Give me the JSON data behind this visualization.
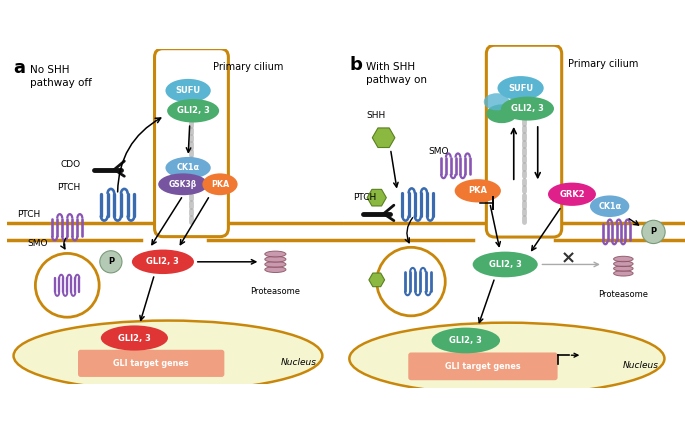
{
  "colors": {
    "membrane": "#c8870a",
    "nucleus_fill": "#f5f5d0",
    "cell_fill": "#ffffff",
    "SUFU": "#5ab5d2",
    "GLI23_green": "#4aad6e",
    "GLI23_red": "#e03535",
    "CK1a": "#6baad4",
    "GSK3b": "#7654a0",
    "PKA": "#f07830",
    "P_fill": "#b5cab5",
    "P_edge": "#7a9a7a",
    "GRK2": "#e0208a",
    "proteasome": "#c088a0",
    "proteasome_edge": "#885060",
    "PTCH_helix": "#3a6ab0",
    "SMO_helix": "#8855b5",
    "CDO_black": "#222222",
    "SHH_green": "#8ab840",
    "SHH_edge": "#5a8020",
    "GLI_target_box": "#f0a080",
    "nucleus_edge": "#c8870a"
  },
  "panel_a": {
    "label": "a",
    "title_line1": "No SHH",
    "title_line2": "pathway off",
    "cilium_label": "Primary cilium"
  },
  "panel_b": {
    "label": "b",
    "title_line1": "With SHH",
    "title_line2": "pathway on",
    "cilium_label": "Primary cilium"
  }
}
